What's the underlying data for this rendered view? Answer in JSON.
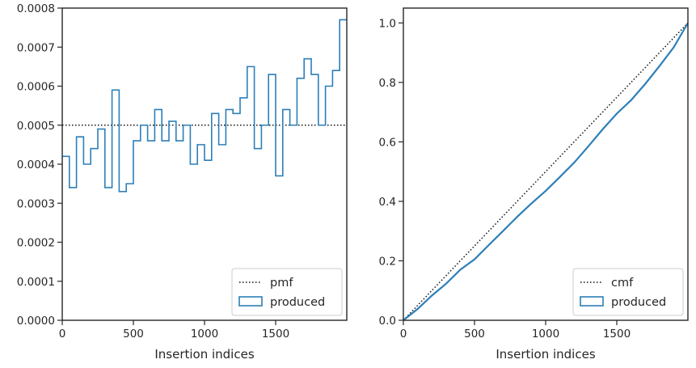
{
  "chart_data": [
    {
      "type": "line",
      "drawstyle": "steps",
      "xlabel": "Insertion indices",
      "ylabel": "",
      "xlim": [
        0,
        2000
      ],
      "ylim": [
        0,
        0.0008
      ],
      "xticks": [
        0,
        500,
        1000,
        1500
      ],
      "xtick_labels": [
        "0",
        "500",
        "1000",
        "1500"
      ],
      "yticks": [
        0,
        0.0001,
        0.0002,
        0.0003,
        0.0004,
        0.0005,
        0.0006,
        0.0007,
        0.0008
      ],
      "ytick_labels": [
        "0.0000",
        "0.0001",
        "0.0002",
        "0.0003",
        "0.0004",
        "0.0005",
        "0.0006",
        "0.0007",
        "0.0008"
      ],
      "legend_position": "lower-right",
      "grid": false,
      "series": [
        {
          "name": "pmf",
          "style": "dotted",
          "color": "#111111",
          "x": [
            0,
            2000
          ],
          "y": [
            0.0005,
            0.0005
          ]
        },
        {
          "name": "produced",
          "style": "step",
          "color": "#2d7fb8",
          "bin_edges": [
            0,
            50,
            100,
            150,
            200,
            250,
            300,
            350,
            400,
            450,
            500,
            550,
            600,
            650,
            700,
            750,
            800,
            850,
            900,
            950,
            1000,
            1050,
            1100,
            1150,
            1200,
            1250,
            1300,
            1350,
            1400,
            1450,
            1500,
            1550,
            1600,
            1650,
            1700,
            1750,
            1800,
            1850,
            1900,
            1950,
            2000
          ],
          "values": [
            0.00042,
            0.00034,
            0.00047,
            0.0004,
            0.00044,
            0.00049,
            0.00034,
            0.00059,
            0.00033,
            0.00035,
            0.00046,
            0.0005,
            0.00046,
            0.00054,
            0.00046,
            0.00051,
            0.00046,
            0.0005,
            0.0004,
            0.00045,
            0.00041,
            0.00053,
            0.00045,
            0.00054,
            0.00053,
            0.00057,
            0.00065,
            0.00044,
            0.0005,
            0.00063,
            0.00037,
            0.00054,
            0.0005,
            0.00062,
            0.00067,
            0.00063,
            0.0005,
            0.0006,
            0.00064,
            0.00077
          ]
        }
      ]
    },
    {
      "type": "line",
      "drawstyle": "steps",
      "xlabel": "Insertion indices",
      "ylabel": "",
      "xlim": [
        0,
        2000
      ],
      "ylim": [
        0,
        1.05
      ],
      "xticks": [
        0,
        500,
        1000,
        1500
      ],
      "xtick_labels": [
        "0",
        "500",
        "1000",
        "1500"
      ],
      "yticks": [
        0,
        0.2,
        0.4,
        0.6,
        0.8,
        1.0
      ],
      "ytick_labels": [
        "0.0",
        "0.2",
        "0.4",
        "0.6",
        "0.8",
        "1.0"
      ],
      "legend_position": "lower-right",
      "grid": false,
      "series": [
        {
          "name": "cmf",
          "style": "dotted",
          "color": "#111111",
          "x": [
            0,
            2000
          ],
          "y": [
            0,
            1.0
          ]
        },
        {
          "name": "produced",
          "style": "line",
          "color": "#2d7fb8",
          "x": [
            0,
            100,
            200,
            300,
            400,
            500,
            600,
            700,
            800,
            900,
            1000,
            1100,
            1200,
            1300,
            1400,
            1500,
            1600,
            1700,
            1800,
            1900,
            2000
          ],
          "y": [
            0,
            0.038,
            0.083,
            0.123,
            0.17,
            0.205,
            0.253,
            0.3,
            0.348,
            0.393,
            0.435,
            0.482,
            0.53,
            0.585,
            0.642,
            0.695,
            0.74,
            0.795,
            0.855,
            0.918,
            1.0
          ]
        }
      ]
    }
  ]
}
